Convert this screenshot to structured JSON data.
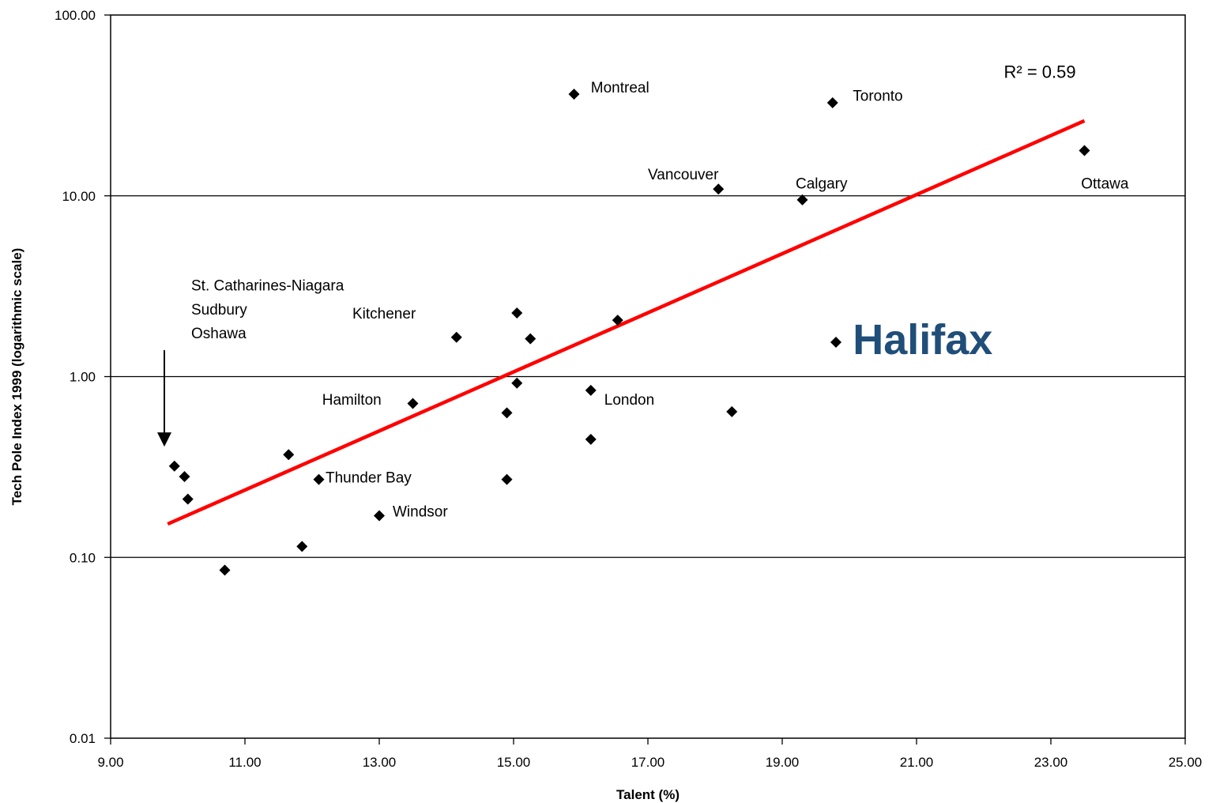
{
  "chart_data": {
    "type": "scatter",
    "xlabel": "Talent (%)",
    "ylabel": "Tech Pole Index 1999 (logarithmic scale)",
    "xlim": [
      9,
      25
    ],
    "ylim": [
      0.01,
      100
    ],
    "y_scale": "log",
    "grid": "horizontal major gridlines",
    "x_ticks": [
      "9.00",
      "11.00",
      "13.00",
      "15.00",
      "17.00",
      "19.00",
      "21.00",
      "23.00",
      "25.00"
    ],
    "y_ticks": [
      "0.01",
      "0.10",
      "1.00",
      "10.00",
      "100.00"
    ],
    "points": [
      {
        "x": 9.95,
        "y": 0.32
      },
      {
        "x": 10.1,
        "y": 0.28
      },
      {
        "x": 10.15,
        "y": 0.21
      },
      {
        "x": 10.7,
        "y": 0.085
      },
      {
        "x": 11.65,
        "y": 0.37
      },
      {
        "x": 11.85,
        "y": 0.115
      },
      {
        "x": 12.1,
        "y": 0.27
      },
      {
        "x": 13.0,
        "y": 0.17
      },
      {
        "x": 13.5,
        "y": 0.71
      },
      {
        "x": 14.15,
        "y": 1.65
      },
      {
        "x": 14.9,
        "y": 0.27
      },
      {
        "x": 14.9,
        "y": 0.63
      },
      {
        "x": 15.05,
        "y": 0.92
      },
      {
        "x": 15.05,
        "y": 2.25
      },
      {
        "x": 15.25,
        "y": 1.62
      },
      {
        "x": 15.9,
        "y": 36.5
      },
      {
        "x": 16.15,
        "y": 0.84
      },
      {
        "x": 16.15,
        "y": 0.45
      },
      {
        "x": 16.55,
        "y": 2.05
      },
      {
        "x": 18.05,
        "y": 10.9
      },
      {
        "x": 18.25,
        "y": 0.64
      },
      {
        "x": 19.3,
        "y": 9.5
      },
      {
        "x": 19.75,
        "y": 32.7
      },
      {
        "x": 19.8,
        "y": 1.55
      },
      {
        "x": 23.5,
        "y": 17.8
      }
    ],
    "labels": [
      {
        "text": "Montreal",
        "x": 16.15,
        "y": 37.2
      },
      {
        "text": "Toronto",
        "x": 20.05,
        "y": 33.5
      },
      {
        "text": "Vancouver",
        "x": 17.0,
        "y": 12.3
      },
      {
        "text": "Calgary",
        "x": 19.2,
        "y": 11.0
      },
      {
        "text": "Ottawa",
        "x": 23.45,
        "y": 11.0
      },
      {
        "text": "Kitchener",
        "x": 12.6,
        "y": 2.1
      },
      {
        "text": "Hamilton",
        "x": 12.15,
        "y": 0.7
      },
      {
        "text": "London",
        "x": 16.35,
        "y": 0.7
      },
      {
        "text": "Thunder Bay",
        "x": 12.2,
        "y": 0.26
      },
      {
        "text": "Windsor",
        "x": 13.2,
        "y": 0.168
      },
      {
        "text": "St. Catharines-Niagara",
        "x": 10.2,
        "y": 3.0
      },
      {
        "text": "Sudbury",
        "x": 10.2,
        "y": 2.2
      },
      {
        "text": "Oshawa",
        "x": 10.2,
        "y": 1.63
      }
    ],
    "highlight": {
      "text": "Halifax",
      "x": 20.05,
      "y": 1.6,
      "color": "#1f4e79"
    },
    "trendline": {
      "x": [
        9.85,
        23.5
      ],
      "y": [
        0.153,
        26.0
      ],
      "color": "#ff0000"
    },
    "r_squared": {
      "text": "R² = 0.59",
      "x": 22.3,
      "y": 45.0
    },
    "arrow": {
      "x": 9.8,
      "y_from": 1.4,
      "y_to": 0.41
    }
  }
}
